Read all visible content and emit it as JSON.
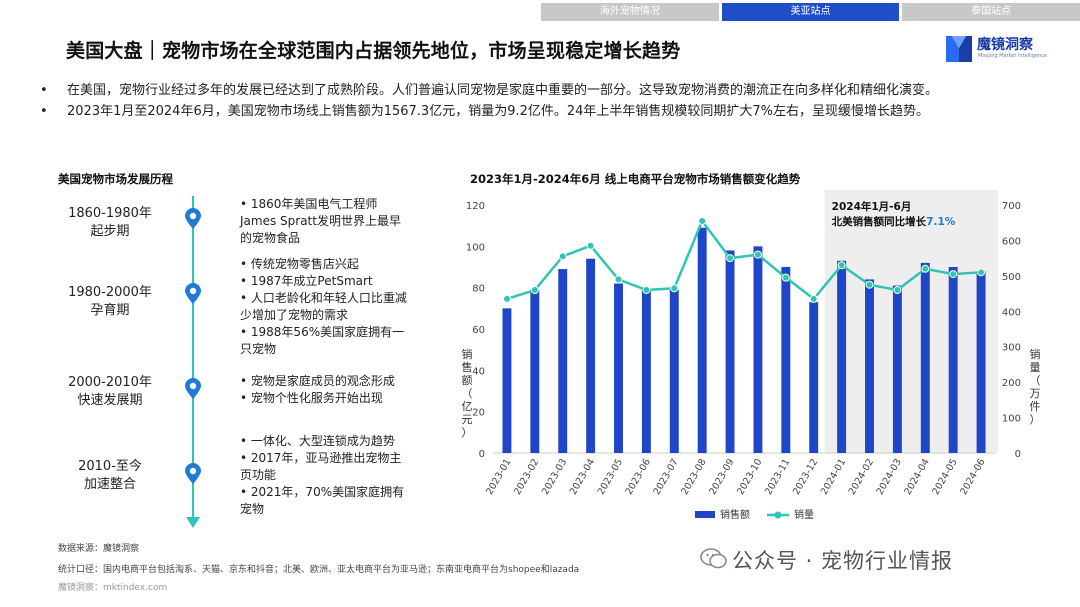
{
  "tabs": [
    {
      "label": "海外宠物情况",
      "active": false
    },
    {
      "label": "美亚站点",
      "active": true
    },
    {
      "label": "泰国站点",
      "active": false
    }
  ],
  "title": "美国大盘｜宠物市场在全球范围内占据领先地位，市场呈现稳定增长趋势",
  "logo": {
    "name": "魔镜洞察",
    "subtitle": "Moojing Market Intelligence"
  },
  "bullets": [
    "在美国，宠物行业经过多年的发展已经达到了成熟阶段。人们普遍认同宠物是家庭中重要的一部分。这导致宠物消费的潮流正在向多样化和精细化演变。",
    "2023年1月至2024年6月，美国宠物市场线上销售额为1567.3亿元，销量为9.2亿件。24年上半年销售规模较同期扩大7%左右，呈现缓慢增长趋势。"
  ],
  "timeline": {
    "title": "美国宠物市场发展历程",
    "phases": [
      {
        "period": "1860-1980年",
        "name": "起步期",
        "events": "•  1860年美国电气工程师\nJames Spratt发明世界上最早\n的宠物食品"
      },
      {
        "period": "1980-2000年",
        "name": "孕育期",
        "events": "• 传统宠物零售店兴起\n• 1987年成立PetSmart\n• 人口老龄化和年轻人口比重减\n少增加了宠物的需求\n• 1988年56%美国家庭拥有一\n只宠物"
      },
      {
        "period": "2000-2010年",
        "name": "快速发展期",
        "events": "•  宠物是家庭成员的观念形成\n•  宠物个性化服务开始出现"
      },
      {
        "period": "2010-至今",
        "name": "加速整合",
        "events": "•  一体化、大型连锁成为趋势\n• 2017年，亚马逊推出宠物主\n页功能\n• 2021年，70%美国家庭拥有\n宠物"
      }
    ]
  },
  "footer": {
    "source": "数据来源：魔镜洞察",
    "scope": "统计口径：国内电商平台包括淘系、天猫、京东和抖音；北美、欧洲、亚太电商平台为亚马逊；东南亚电商平台为shopee和lazada",
    "site": "魔镜洞察：mktindex.com"
  },
  "watermark": "公众号 · 宠物行业情报",
  "colors": {
    "bar": "#1f46c7",
    "line": "#2ec4b6",
    "tab_active": "#1f4fc8",
    "tab_inactive": "#c8c8c8",
    "highlight_bg": "#eeeeee",
    "accent_text": "#1f7bd6"
  },
  "chart_data": {
    "type": "bar",
    "title": "2023年1月-2024年6月 线上电商平台宠物市场销售额变化趋势",
    "categories": [
      "2023-01",
      "2023-02",
      "2023-03",
      "2023-04",
      "2023-05",
      "2023-06",
      "2023-07",
      "2023-08",
      "2023-09",
      "2023-10",
      "2023-11",
      "2023-12",
      "2024-01",
      "2024-02",
      "2024-03",
      "2024-04",
      "2024-05",
      "2024-06"
    ],
    "series": [
      {
        "name": "销售额",
        "type": "bar",
        "axis": "left",
        "values": [
          70,
          79,
          89,
          94,
          82,
          79,
          79,
          109,
          98,
          100,
          90,
          73,
          93,
          84,
          81,
          92,
          90,
          88
        ]
      },
      {
        "name": "销量",
        "type": "line",
        "axis": "right",
        "values": [
          435,
          460,
          555,
          585,
          490,
          460,
          465,
          655,
          550,
          560,
          495,
          435,
          530,
          475,
          460,
          520,
          505,
          510
        ]
      }
    ],
    "ylabel_left": "销售额（亿元）",
    "ylabel_right": "销量（万件）",
    "ylim_left": [
      0,
      120
    ],
    "yticks_left": [
      0,
      20,
      40,
      60,
      80,
      100,
      120
    ],
    "ylim_right": [
      0,
      700
    ],
    "yticks_right": [
      0,
      100,
      200,
      300,
      400,
      500,
      600,
      700
    ],
    "highlight": {
      "from": "2024-01",
      "to": "2024-06",
      "label_line1": "2024年1月-6月",
      "label_line2": "北美销售额同比增长",
      "value": "7.1%"
    },
    "grid": false,
    "legend_position": "bottom"
  }
}
